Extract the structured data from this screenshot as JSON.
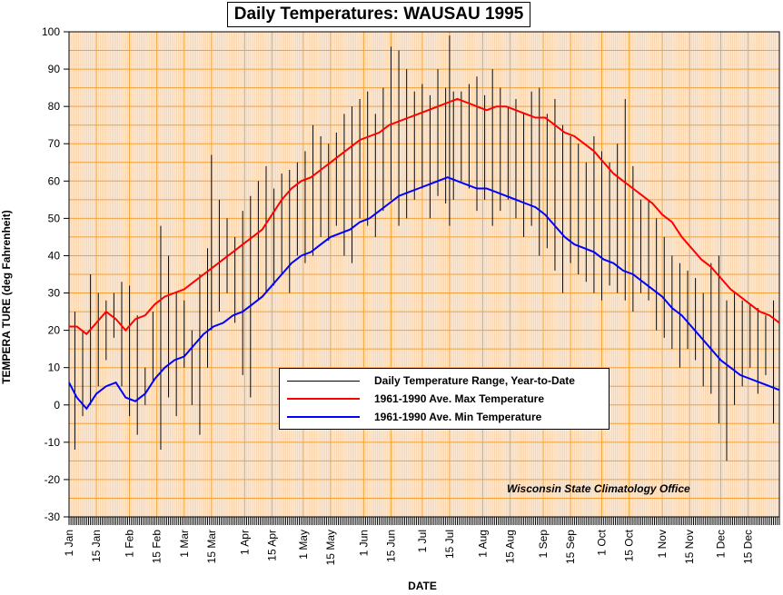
{
  "chart_data": {
    "type": "line",
    "title": "Daily Temperatures: WAUSAU 1995",
    "xlabel": "DATE",
    "ylabel": "TEMPERA TURE (deg Fahrenheit)",
    "ylim": [
      -30,
      100
    ],
    "ytick_step": 10,
    "xlim_days": [
      1,
      365
    ],
    "grid": true,
    "background": "#fde9d3",
    "grid_color": "#f2a13a",
    "x_ticks": [
      {
        "day": 1,
        "label": "1 Jan"
      },
      {
        "day": 15,
        "label": "15 Jan"
      },
      {
        "day": 32,
        "label": "1 Feb"
      },
      {
        "day": 46,
        "label": "15 Feb"
      },
      {
        "day": 60,
        "label": "1 Mar"
      },
      {
        "day": 74,
        "label": "15 Mar"
      },
      {
        "day": 91,
        "label": "1 Apr"
      },
      {
        "day": 105,
        "label": "15 Apr"
      },
      {
        "day": 121,
        "label": "1 May"
      },
      {
        "day": 135,
        "label": "15 May"
      },
      {
        "day": 152,
        "label": "1 Jun"
      },
      {
        "day": 166,
        "label": "15 Jun"
      },
      {
        "day": 182,
        "label": "1 Jul"
      },
      {
        "day": 196,
        "label": "15 Jul"
      },
      {
        "day": 213,
        "label": "1 Aug"
      },
      {
        "day": 227,
        "label": "15 Aug"
      },
      {
        "day": 244,
        "label": "1 Sep"
      },
      {
        "day": 258,
        "label": "15 Sep"
      },
      {
        "day": 274,
        "label": "1 Oct"
      },
      {
        "day": 288,
        "label": "15 Oct"
      },
      {
        "day": 305,
        "label": "1 Nov"
      },
      {
        "day": 319,
        "label": "15 Nov"
      },
      {
        "day": 335,
        "label": "1 Dec"
      },
      {
        "day": 349,
        "label": "15 Dec"
      }
    ],
    "series": [
      {
        "name": "Daily Temperature Range, Year-to-Date",
        "color": "#000000",
        "type": "range",
        "x_days": [
          1,
          4,
          8,
          12,
          16,
          20,
          24,
          28,
          32,
          36,
          40,
          44,
          48,
          52,
          56,
          60,
          64,
          68,
          72,
          74,
          78,
          82,
          86,
          90,
          94,
          98,
          102,
          106,
          110,
          114,
          118,
          122,
          126,
          130,
          134,
          138,
          142,
          146,
          150,
          154,
          158,
          162,
          166,
          170,
          174,
          178,
          182,
          186,
          190,
          194,
          196,
          198,
          202,
          206,
          210,
          214,
          218,
          222,
          226,
          230,
          234,
          238,
          242,
          246,
          250,
          254,
          258,
          262,
          266,
          270,
          274,
          278,
          282,
          286,
          290,
          294,
          298,
          302,
          306,
          310,
          314,
          318,
          322,
          326,
          330,
          334,
          338,
          342,
          346,
          350,
          354,
          358,
          362,
          365
        ],
        "low": [
          2,
          -12,
          -3,
          0,
          5,
          12,
          18,
          5,
          -3,
          -8,
          0,
          6,
          -12,
          2,
          -3,
          10,
          0,
          -8,
          10,
          20,
          25,
          30,
          22,
          8,
          2,
          28,
          30,
          32,
          35,
          30,
          40,
          38,
          40,
          45,
          44,
          48,
          40,
          38,
          50,
          48,
          45,
          52,
          55,
          48,
          50,
          55,
          58,
          50,
          56,
          54,
          48,
          55,
          60,
          58,
          52,
          55,
          48,
          52,
          55,
          50,
          45,
          48,
          40,
          42,
          36,
          30,
          38,
          35,
          33,
          30,
          28,
          32,
          30,
          28,
          25,
          30,
          28,
          20,
          18,
          15,
          10,
          15,
          12,
          5,
          3,
          -5,
          -15,
          0,
          5,
          10,
          3,
          8,
          -5,
          8
        ],
        "high": [
          15,
          25,
          20,
          35,
          30,
          28,
          30,
          33,
          32,
          24,
          10,
          25,
          48,
          40,
          30,
          28,
          20,
          35,
          42,
          67,
          55,
          50,
          45,
          52,
          56,
          60,
          64,
          58,
          62,
          63,
          65,
          68,
          75,
          72,
          70,
          73,
          78,
          80,
          82,
          84,
          78,
          85,
          96,
          95,
          90,
          84,
          86,
          83,
          90,
          85,
          99,
          84,
          84,
          86,
          88,
          83,
          90,
          85,
          80,
          82,
          78,
          84,
          85,
          78,
          82,
          75,
          72,
          70,
          65,
          72,
          68,
          65,
          70,
          82,
          64,
          55,
          55,
          50,
          45,
          40,
          38,
          36,
          34,
          30,
          38,
          40,
          28,
          30,
          28,
          27,
          26,
          24,
          28,
          31
        ]
      },
      {
        "name": "1961-1990 Ave. Max Temperature",
        "color": "#ff0000",
        "type": "line",
        "x_days": [
          1,
          5,
          10,
          15,
          20,
          25,
          30,
          35,
          40,
          45,
          50,
          55,
          60,
          65,
          70,
          75,
          80,
          85,
          90,
          95,
          100,
          105,
          110,
          115,
          120,
          125,
          130,
          135,
          140,
          145,
          150,
          155,
          160,
          165,
          170,
          175,
          180,
          185,
          190,
          195,
          200,
          205,
          210,
          215,
          220,
          225,
          230,
          235,
          240,
          245,
          250,
          255,
          260,
          265,
          270,
          275,
          280,
          285,
          290,
          295,
          300,
          305,
          310,
          315,
          320,
          325,
          330,
          335,
          340,
          345,
          350,
          355,
          360,
          365
        ],
        "values": [
          21,
          21,
          19,
          22,
          25,
          23,
          20,
          23,
          24,
          27,
          29,
          30,
          31,
          33,
          35,
          37,
          39,
          41,
          43,
          45,
          47,
          51,
          55,
          58,
          60,
          61,
          63,
          65,
          67,
          69,
          71,
          72,
          73,
          75,
          76,
          77,
          78,
          79,
          80,
          81,
          82,
          81,
          80,
          79,
          80,
          80,
          79,
          78,
          77,
          77,
          75,
          73,
          72,
          70,
          68,
          65,
          62,
          60,
          58,
          56,
          54,
          51,
          49,
          45,
          42,
          39,
          37,
          34,
          31,
          29,
          27,
          25,
          24,
          22
        ]
      },
      {
        "name": "1961-1990 Ave. Min Temperature",
        "color": "#0000ff",
        "type": "line",
        "x_days": [
          1,
          5,
          10,
          15,
          20,
          25,
          30,
          35,
          40,
          45,
          50,
          55,
          60,
          65,
          70,
          75,
          80,
          85,
          90,
          95,
          100,
          105,
          110,
          115,
          120,
          125,
          130,
          135,
          140,
          145,
          150,
          155,
          160,
          165,
          170,
          175,
          180,
          185,
          190,
          195,
          200,
          205,
          210,
          215,
          220,
          225,
          230,
          235,
          240,
          245,
          250,
          255,
          260,
          265,
          270,
          275,
          280,
          285,
          290,
          295,
          300,
          305,
          310,
          315,
          320,
          325,
          330,
          335,
          340,
          345,
          350,
          355,
          360,
          365
        ],
        "values": [
          6,
          2,
          -1,
          3,
          5,
          6,
          2,
          1,
          3,
          7,
          10,
          12,
          13,
          16,
          19,
          21,
          22,
          24,
          25,
          27,
          29,
          32,
          35,
          38,
          40,
          41,
          43,
          45,
          46,
          47,
          49,
          50,
          52,
          54,
          56,
          57,
          58,
          59,
          60,
          61,
          60,
          59,
          58,
          58,
          57,
          56,
          55,
          54,
          53,
          51,
          48,
          45,
          43,
          42,
          41,
          39,
          38,
          36,
          35,
          33,
          31,
          29,
          26,
          24,
          21,
          18,
          15,
          12,
          10,
          8,
          7,
          6,
          5,
          4
        ]
      }
    ]
  },
  "legend": {
    "range_label": "Daily Temperature Range, Year-to-Date",
    "max_label": "1961-1990 Ave. Max Temperature",
    "min_label": "1961-1990 Ave. Min Temperature"
  },
  "credit": "Wisconsin State Climatology Office"
}
